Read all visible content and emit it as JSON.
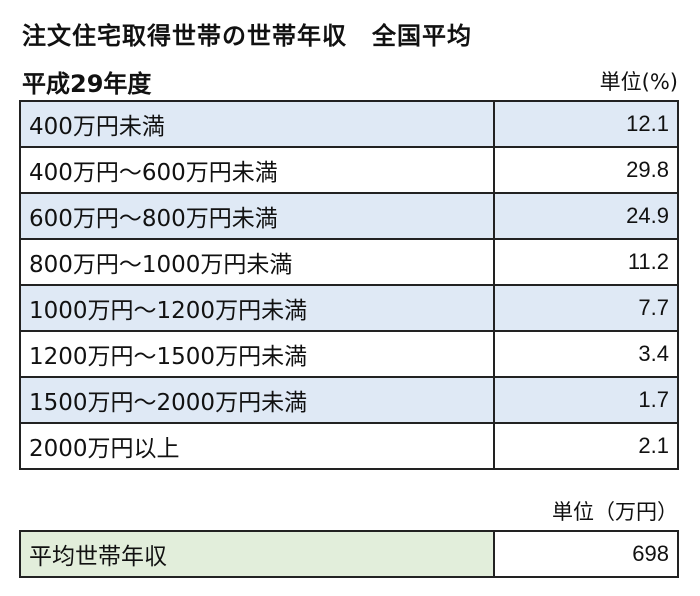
{
  "title": "注文住宅取得世帯の世帯年収　全国平均",
  "subtitle": "平成29年度",
  "unit_percent": "単位(%)",
  "rows": [
    {
      "label": "400万円未満",
      "value": "12.1"
    },
    {
      "label": "400万円～600万円未満",
      "value": "29.8"
    },
    {
      "label": "600万円～800万円未満",
      "value": "24.9"
    },
    {
      "label": "800万円～1000万円未満",
      "value": "11.2"
    },
    {
      "label": "1000万円～1200万円未満",
      "value": "7.7"
    },
    {
      "label": "1200万円～1500万円未満",
      "value": "3.4"
    },
    {
      "label": "1500万円～2000万円未満",
      "value": "1.7"
    },
    {
      "label": "2000万円以上",
      "value": "2.1"
    }
  ],
  "unit_yen": "単位（万円）",
  "average": {
    "label": "平均世帯年収",
    "value": "698"
  },
  "colors": {
    "shade_blue": "#dfe9f5",
    "shade_green": "#e2eedb",
    "border": "#222222"
  }
}
